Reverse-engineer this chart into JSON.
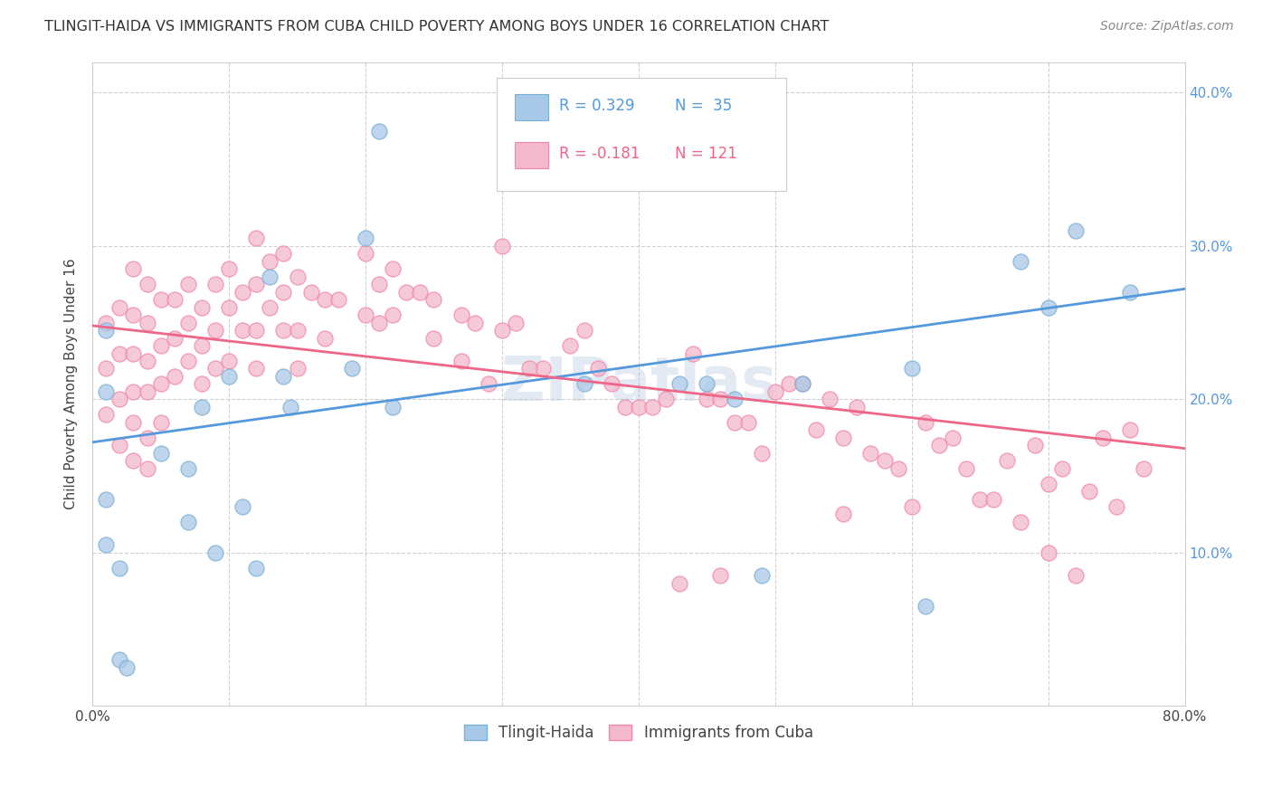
{
  "title": "TLINGIT-HAIDA VS IMMIGRANTS FROM CUBA CHILD POVERTY AMONG BOYS UNDER 16 CORRELATION CHART",
  "source": "Source: ZipAtlas.com",
  "ylabel": "Child Poverty Among Boys Under 16",
  "x_min": 0.0,
  "x_max": 0.8,
  "y_min": 0.0,
  "y_max": 0.42,
  "legend_labels": [
    "Tlingit-Haida",
    "Immigrants from Cuba"
  ],
  "tlingit_color": "#a8c8e8",
  "cuba_color": "#f4b8cc",
  "tlingit_edge_color": "#7bafd4",
  "cuba_edge_color": "#f088a8",
  "tlingit_line_color": "#5599dd",
  "cuba_line_color": "#ee6688",
  "watermark": "ZIPatlas",
  "tlingit_line_start_y": 0.172,
  "tlingit_line_end_y": 0.272,
  "cuba_line_start_y": 0.248,
  "cuba_line_end_y": 0.168
}
